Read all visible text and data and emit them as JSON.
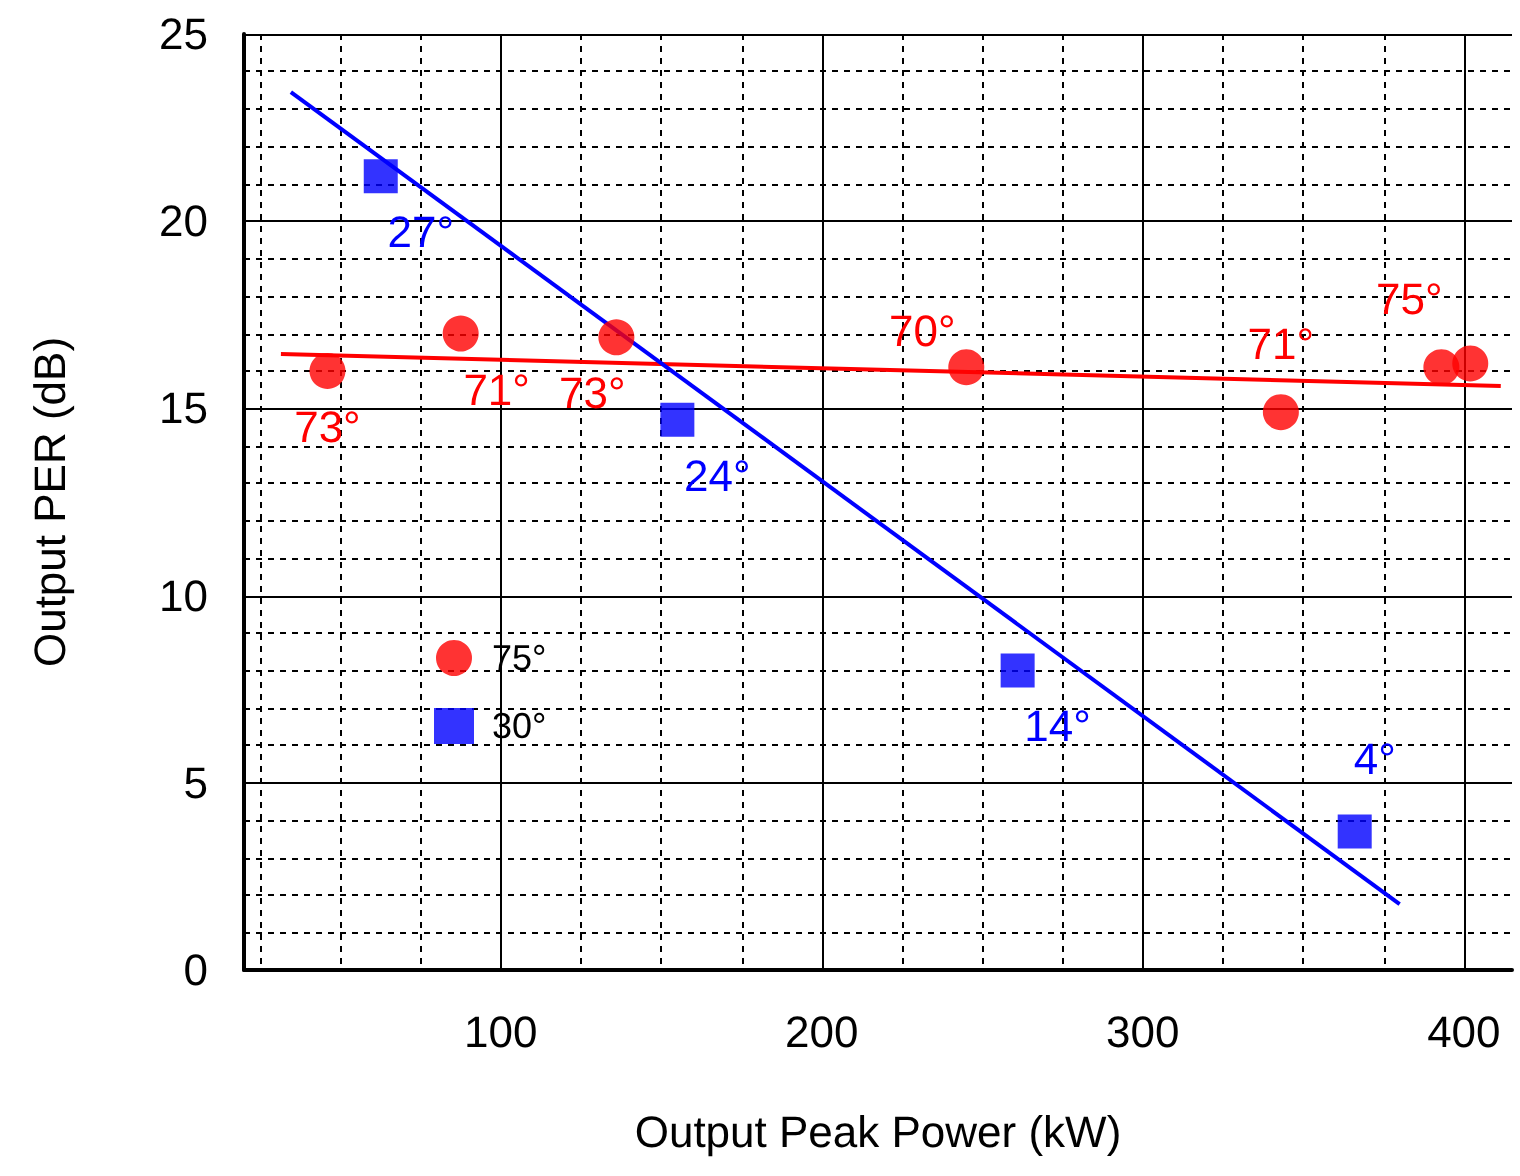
{
  "chart_data": {
    "type": "scatter",
    "xlabel": "Output Peak Power (kW)",
    "ylabel": "Output PER (dB)",
    "annotations": [
      {
        "text": "73°",
        "x": 46,
        "y": 16.0
      },
      {
        "text": "71°",
        "x": 87.5,
        "y": 17.0
      },
      {
        "text": "73°",
        "x": 136,
        "y": 16.9
      },
      {
        "text": "70°",
        "x": 245,
        "y": 16.1
      },
      {
        "text": "71°",
        "x": 343,
        "y": 14.9
      },
      {
        "text": "75°",
        "x": 393,
        "y": 16.1
      },
      {
        "text": "27°",
        "x": 62.6,
        "y": 21.2
      },
      {
        "text": "24°",
        "x": 155,
        "y": 14.7
      },
      {
        "text": "14°",
        "x": 261,
        "y": 8.0
      },
      {
        "text": "4°",
        "x": 366,
        "y": 3.7
      }
    ],
    "xlim": [
      20,
      415
    ],
    "xticks": [
      100,
      200,
      300,
      400
    ],
    "ylim": [
      0,
      25
    ],
    "yticks": [
      0,
      5,
      10,
      15,
      20,
      25
    ],
    "grid": true,
    "legend": "left",
    "series": [
      {
        "name": "75°",
        "marker": "circle",
        "color": "#ff0000",
        "x": [
          46,
          87.5,
          136,
          245,
          343,
          393,
          402
        ],
        "values": [
          16.0,
          17.0,
          16.9,
          16.1,
          14.9,
          16.1,
          16.2
        ]
      },
      {
        "name": "30°",
        "marker": "square",
        "color": "#0000ff",
        "x": [
          62.6,
          155,
          261,
          366
        ],
        "values": [
          21.2,
          14.7,
          8.0,
          3.7
        ]
      },
      {
        "type": "line",
        "marker": "none",
        "line_style": "solid",
        "color": "#ff0000",
        "x": [
          31.5,
          411.5
        ],
        "values": [
          16.45,
          15.6
        ]
      },
      {
        "type": "line",
        "marker": "none",
        "line_style": "solid",
        "color": "#0000ff",
        "x": [
          34.6,
          380
        ],
        "values": [
          23.45,
          1.76
        ]
      }
    ]
  }
}
